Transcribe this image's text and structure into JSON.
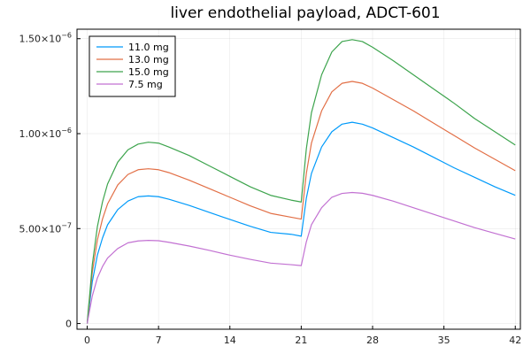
{
  "chart_data": {
    "type": "line",
    "title": "liver endothelial payload, ADCT-601",
    "xlabel": "",
    "ylabel": "",
    "xlim": [
      -1,
      42.5
    ],
    "ylim": [
      -3e-08,
      1.55e-06
    ],
    "x_ticks": [
      0,
      7,
      14,
      21,
      28,
      35,
      42
    ],
    "x_tick_labels": [
      "0",
      "7",
      "14",
      "21",
      "28",
      "35",
      "42"
    ],
    "y_ticks": [
      0,
      5e-07,
      1e-06,
      1.5e-06
    ],
    "y_tick_labels": [
      {
        "mantissa": "0",
        "exponent": ""
      },
      {
        "mantissa": "5.00×10",
        "exponent": "−7"
      },
      {
        "mantissa": "1.00×10",
        "exponent": "−6"
      },
      {
        "mantissa": "1.50×10",
        "exponent": "−6"
      }
    ],
    "grid": true,
    "legend_position": "top-left",
    "series": [
      {
        "name": "11.0 mg",
        "color": "#009AFA",
        "x": [
          0,
          0.5,
          1,
          1.5,
          2,
          3,
          4,
          5,
          6,
          7,
          8,
          10,
          12,
          14,
          16,
          18,
          20,
          21,
          21.5,
          22,
          23,
          24,
          25,
          26,
          27,
          28,
          30,
          32,
          34,
          36,
          38,
          40,
          42
        ],
        "y": [
          0,
          2.2e-07,
          3.6e-07,
          4.5e-07,
          5.2e-07,
          6e-07,
          6.45e-07,
          6.68e-07,
          6.72e-07,
          6.68e-07,
          6.55e-07,
          6.22e-07,
          5.85e-07,
          5.48e-07,
          5.12e-07,
          4.8e-07,
          4.7e-07,
          4.6e-07,
          6.6e-07,
          7.9e-07,
          9.3e-07,
          1.01e-06,
          1.05e-06,
          1.06e-06,
          1.05e-06,
          1.03e-06,
          9.8e-07,
          9.3e-07,
          8.75e-07,
          8.2e-07,
          7.7e-07,
          7.2e-07,
          6.75e-07
        ]
      },
      {
        "name": "13.0 mg",
        "color": "#E26F46",
        "x": [
          0,
          0.5,
          1,
          1.5,
          2,
          3,
          4,
          5,
          6,
          7,
          8,
          10,
          12,
          14,
          16,
          18,
          20,
          21,
          21.5,
          22,
          23,
          24,
          25,
          26,
          27,
          28,
          30,
          32,
          34,
          36,
          38,
          40,
          42
        ],
        "y": [
          0,
          2.7e-07,
          4.4e-07,
          5.5e-07,
          6.3e-07,
          7.3e-07,
          7.85e-07,
          8.1e-07,
          8.15e-07,
          8.1e-07,
          7.95e-07,
          7.55e-07,
          7.1e-07,
          6.65e-07,
          6.2e-07,
          5.8e-07,
          5.6e-07,
          5.5e-07,
          7.9e-07,
          9.5e-07,
          1.12e-06,
          1.22e-06,
          1.265e-06,
          1.275e-06,
          1.265e-06,
          1.24e-06,
          1.18e-06,
          1.12e-06,
          1.055e-06,
          9.9e-07,
          9.25e-07,
          8.65e-07,
          8.05e-07
        ]
      },
      {
        "name": "15.0 mg",
        "color": "#3DA44D",
        "x": [
          0,
          0.5,
          1,
          1.5,
          2,
          3,
          4,
          5,
          6,
          7,
          8,
          10,
          12,
          14,
          16,
          18,
          20,
          21,
          21.5,
          22,
          23,
          24,
          25,
          26,
          27,
          28,
          30,
          32,
          34,
          36,
          38,
          40,
          42
        ],
        "y": [
          0,
          3.1e-07,
          5.1e-07,
          6.4e-07,
          7.35e-07,
          8.5e-07,
          9.15e-07,
          9.45e-07,
          9.55e-07,
          9.5e-07,
          9.3e-07,
          8.85e-07,
          8.3e-07,
          7.75e-07,
          7.2e-07,
          6.75e-07,
          6.5e-07,
          6.4e-07,
          9.2e-07,
          1.11e-06,
          1.31e-06,
          1.43e-06,
          1.485e-06,
          1.495e-06,
          1.485e-06,
          1.455e-06,
          1.385e-06,
          1.31e-06,
          1.235e-06,
          1.16e-06,
          1.08e-06,
          1.01e-06,
          9.4e-07
        ]
      },
      {
        "name": "7.5 mg",
        "color": "#C271D2",
        "x": [
          0,
          0.5,
          1,
          1.5,
          2,
          3,
          4,
          5,
          6,
          7,
          8,
          10,
          12,
          14,
          16,
          18,
          20,
          21,
          21.5,
          22,
          23,
          24,
          25,
          26,
          27,
          28,
          30,
          32,
          34,
          36,
          38,
          40,
          42
        ],
        "y": [
          0,
          1.45e-07,
          2.4e-07,
          3e-07,
          3.45e-07,
          3.95e-07,
          4.25e-07,
          4.35e-07,
          4.38e-07,
          4.36e-07,
          4.28e-07,
          4.08e-07,
          3.85e-07,
          3.6e-07,
          3.38e-07,
          3.18e-07,
          3.1e-07,
          3.05e-07,
          4.3e-07,
          5.2e-07,
          6.1e-07,
          6.65e-07,
          6.85e-07,
          6.9e-07,
          6.86e-07,
          6.75e-07,
          6.45e-07,
          6.1e-07,
          5.75e-07,
          5.4e-07,
          5.05e-07,
          4.75e-07,
          4.45e-07
        ]
      }
    ]
  }
}
